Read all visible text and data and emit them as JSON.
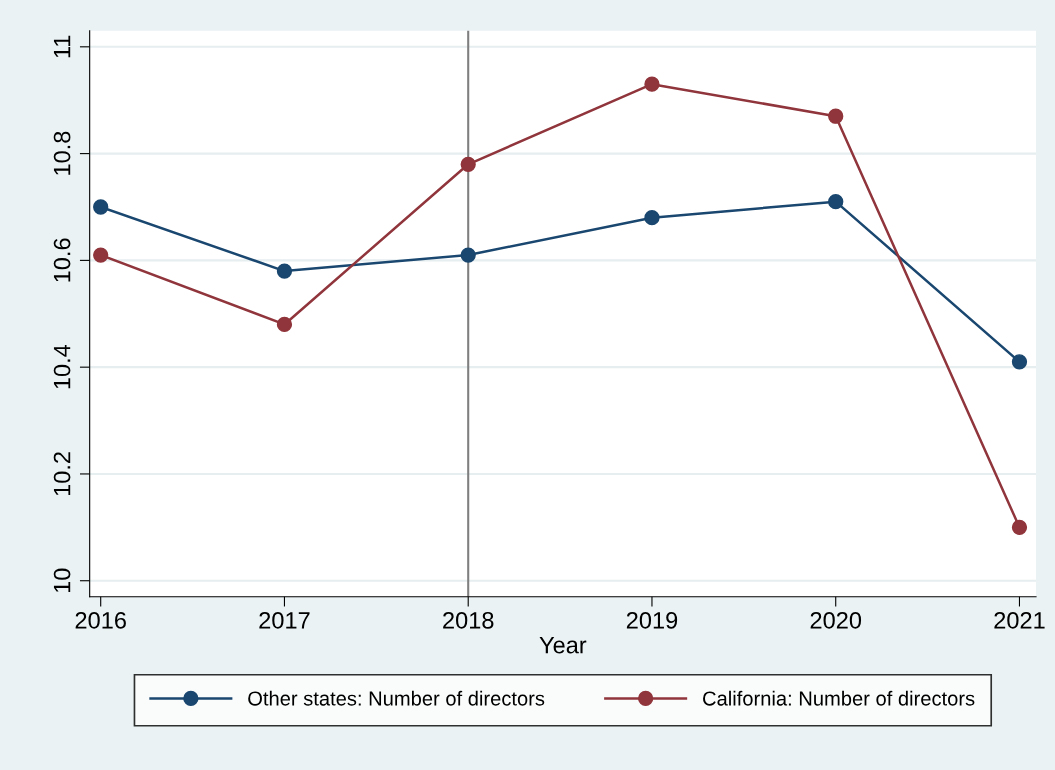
{
  "chart_data": {
    "type": "line",
    "xlabel": "Year",
    "x": [
      2016,
      2017,
      2018,
      2019,
      2020,
      2021
    ],
    "series": [
      {
        "name": "Other states: Number of directors",
        "color": "#1a476f",
        "values": [
          10.7,
          10.58,
          10.61,
          10.68,
          10.71,
          10.41
        ]
      },
      {
        "name": "California: Number of directors",
        "color": "#90353b",
        "values": [
          10.61,
          10.48,
          10.78,
          10.93,
          10.87,
          10.1
        ]
      }
    ],
    "xlim": [
      2015.94,
      2021.09
    ],
    "xticks": [
      2016,
      2017,
      2018,
      2019,
      2020,
      2021
    ],
    "ylim": [
      9.97,
      11.03
    ],
    "yticks": [
      {
        "value": 10,
        "label": "10"
      },
      10.2,
      10.4,
      10.6,
      10.8,
      {
        "value": 11,
        "label": "11"
      }
    ],
    "ref_lines": [
      {
        "axis": "x",
        "value": 2018,
        "color": "#7f7f7f"
      }
    ],
    "grid": "y",
    "legend": "bottom",
    "marker": "circle",
    "line_style": "solid"
  }
}
